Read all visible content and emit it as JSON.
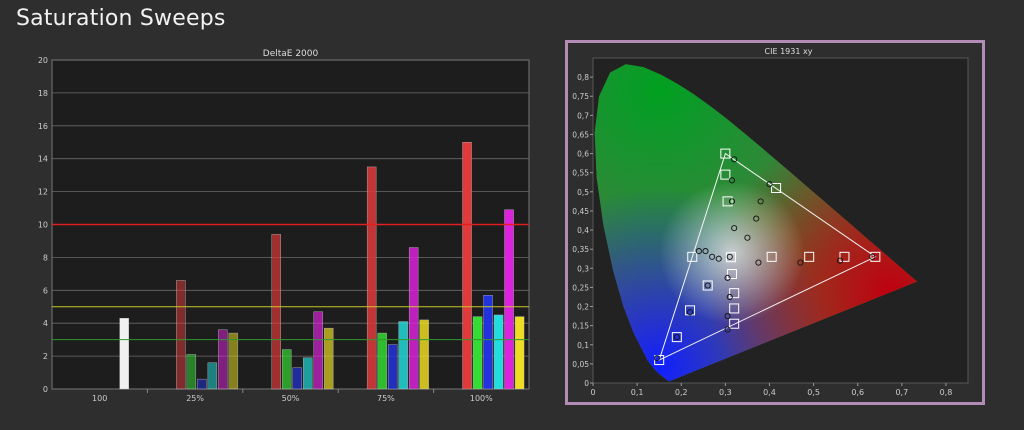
{
  "page": {
    "title": "Saturation Sweeps"
  },
  "chart_data": [
    {
      "type": "bar",
      "title": "DeltaE 2000",
      "categories": [
        "100",
        "25%",
        "50%",
        "75%",
        "100%"
      ],
      "ylim": [
        0,
        20
      ],
      "yticks": [
        0,
        2,
        4,
        6,
        8,
        10,
        12,
        14,
        16,
        18,
        20
      ],
      "grid": true,
      "thresholds": [
        {
          "value": 10,
          "color": "#e02020"
        },
        {
          "value": 5,
          "color": "#c8c82a"
        },
        {
          "value": 3,
          "color": "#2f9a2f"
        }
      ],
      "series": [
        {
          "color": "#f0f0f0",
          "values": [
            4.3,
            null,
            null,
            null,
            null
          ]
        },
        {
          "color": "#e03a3a",
          "values": [
            null,
            6.6,
            9.4,
            13.5,
            15.0
          ]
        },
        {
          "color": "#33dd33",
          "values": [
            null,
            2.1,
            2.4,
            3.4,
            4.4
          ]
        },
        {
          "color": "#2233dd",
          "values": [
            null,
            0.6,
            1.3,
            2.7,
            5.7
          ]
        },
        {
          "color": "#22dddd",
          "values": [
            null,
            1.6,
            1.9,
            4.1,
            4.5
          ]
        },
        {
          "color": "#dd22dd",
          "values": [
            null,
            3.6,
            4.7,
            8.6,
            10.9
          ]
        },
        {
          "color": "#eedd22",
          "values": [
            null,
            3.4,
            3.7,
            4.2,
            4.4
          ]
        }
      ]
    },
    {
      "type": "scatter",
      "title": "CIE 1931 xy",
      "xlim": [
        0,
        0.85
      ],
      "ylim": [
        0,
        0.85
      ],
      "xticks": [
        "0",
        "0,1",
        "0,2",
        "0,3",
        "0,4",
        "0,5",
        "0,6",
        "0,7",
        "0,8"
      ],
      "yticks": [
        "0",
        "0,05",
        "0,1",
        "0,15",
        "0,2",
        "0,25",
        "0,3",
        "0,35",
        "0,4",
        "0,45",
        "0,5",
        "0,55",
        "0,6",
        "0,65",
        "0,7",
        "0,75",
        "0,8"
      ],
      "gamut": [
        [
          0.64,
          0.33
        ],
        [
          0.3,
          0.6
        ],
        [
          0.15,
          0.06
        ]
      ],
      "targets": [
        [
          0.64,
          0.33
        ],
        [
          0.57,
          0.33
        ],
        [
          0.49,
          0.33
        ],
        [
          0.405,
          0.33
        ],
        [
          0.3,
          0.6
        ],
        [
          0.3,
          0.545
        ],
        [
          0.305,
          0.475
        ],
        [
          0.415,
          0.51
        ],
        [
          0.15,
          0.06
        ],
        [
          0.19,
          0.12
        ],
        [
          0.22,
          0.19
        ],
        [
          0.26,
          0.255
        ],
        [
          0.225,
          0.33
        ],
        [
          0.32,
          0.155
        ],
        [
          0.32,
          0.195
        ],
        [
          0.32,
          0.235
        ],
        [
          0.315,
          0.285
        ],
        [
          0.3127,
          0.329
        ]
      ],
      "measured": [
        [
          0.633,
          0.33
        ],
        [
          0.56,
          0.32
        ],
        [
          0.47,
          0.315
        ],
        [
          0.375,
          0.315
        ],
        [
          0.32,
          0.585
        ],
        [
          0.315,
          0.53
        ],
        [
          0.315,
          0.475
        ],
        [
          0.4,
          0.52
        ],
        [
          0.38,
          0.475
        ],
        [
          0.37,
          0.43
        ],
        [
          0.35,
          0.38
        ],
        [
          0.32,
          0.405
        ],
        [
          0.145,
          0.065
        ],
        [
          0.19,
          0.12
        ],
        [
          0.22,
          0.185
        ],
        [
          0.26,
          0.255
        ],
        [
          0.24,
          0.345
        ],
        [
          0.255,
          0.345
        ],
        [
          0.27,
          0.33
        ],
        [
          0.285,
          0.325
        ],
        [
          0.305,
          0.14
        ],
        [
          0.305,
          0.175
        ],
        [
          0.31,
          0.225
        ],
        [
          0.305,
          0.275
        ],
        [
          0.31,
          0.33
        ]
      ]
    }
  ]
}
